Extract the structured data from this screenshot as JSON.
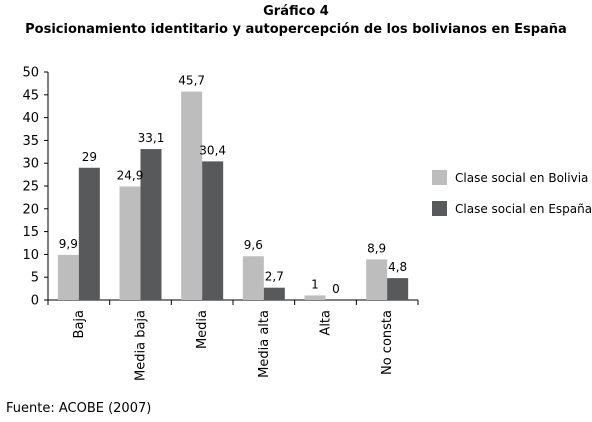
{
  "figure_label": "Gráfico 4",
  "source": "Fuente: ACOBE (2007)",
  "colors": {
    "bolivia": "#bdbdbe",
    "espana": "#58595b",
    "axis": "#000000"
  },
  "chart_data": {
    "type": "bar",
    "title": "Posicionamiento identitario y autopercepción de los bolivianos en España",
    "xlabel": "",
    "ylabel": "",
    "ylim": [
      0,
      50
    ],
    "yticks": [
      0,
      5,
      10,
      15,
      20,
      25,
      30,
      35,
      40,
      45,
      50
    ],
    "grid": false,
    "legend": "right",
    "categories": [
      "Baja",
      "Media baja",
      "Media",
      "Media alta",
      "Alta",
      "No consta"
    ],
    "series": [
      {
        "name": "Clase social en Bolivia",
        "values": [
          9.9,
          24.9,
          45.7,
          9.6,
          1,
          8.9
        ],
        "labels": [
          "9,9",
          "24,9",
          "45,7",
          "9,6",
          "1",
          "8,9"
        ]
      },
      {
        "name": "Clase social en España",
        "values": [
          29,
          33.1,
          30.4,
          2.7,
          0,
          4.8
        ],
        "labels": [
          "29",
          "33,1",
          "30,4",
          "2,7",
          "0",
          "4,8"
        ]
      }
    ]
  }
}
